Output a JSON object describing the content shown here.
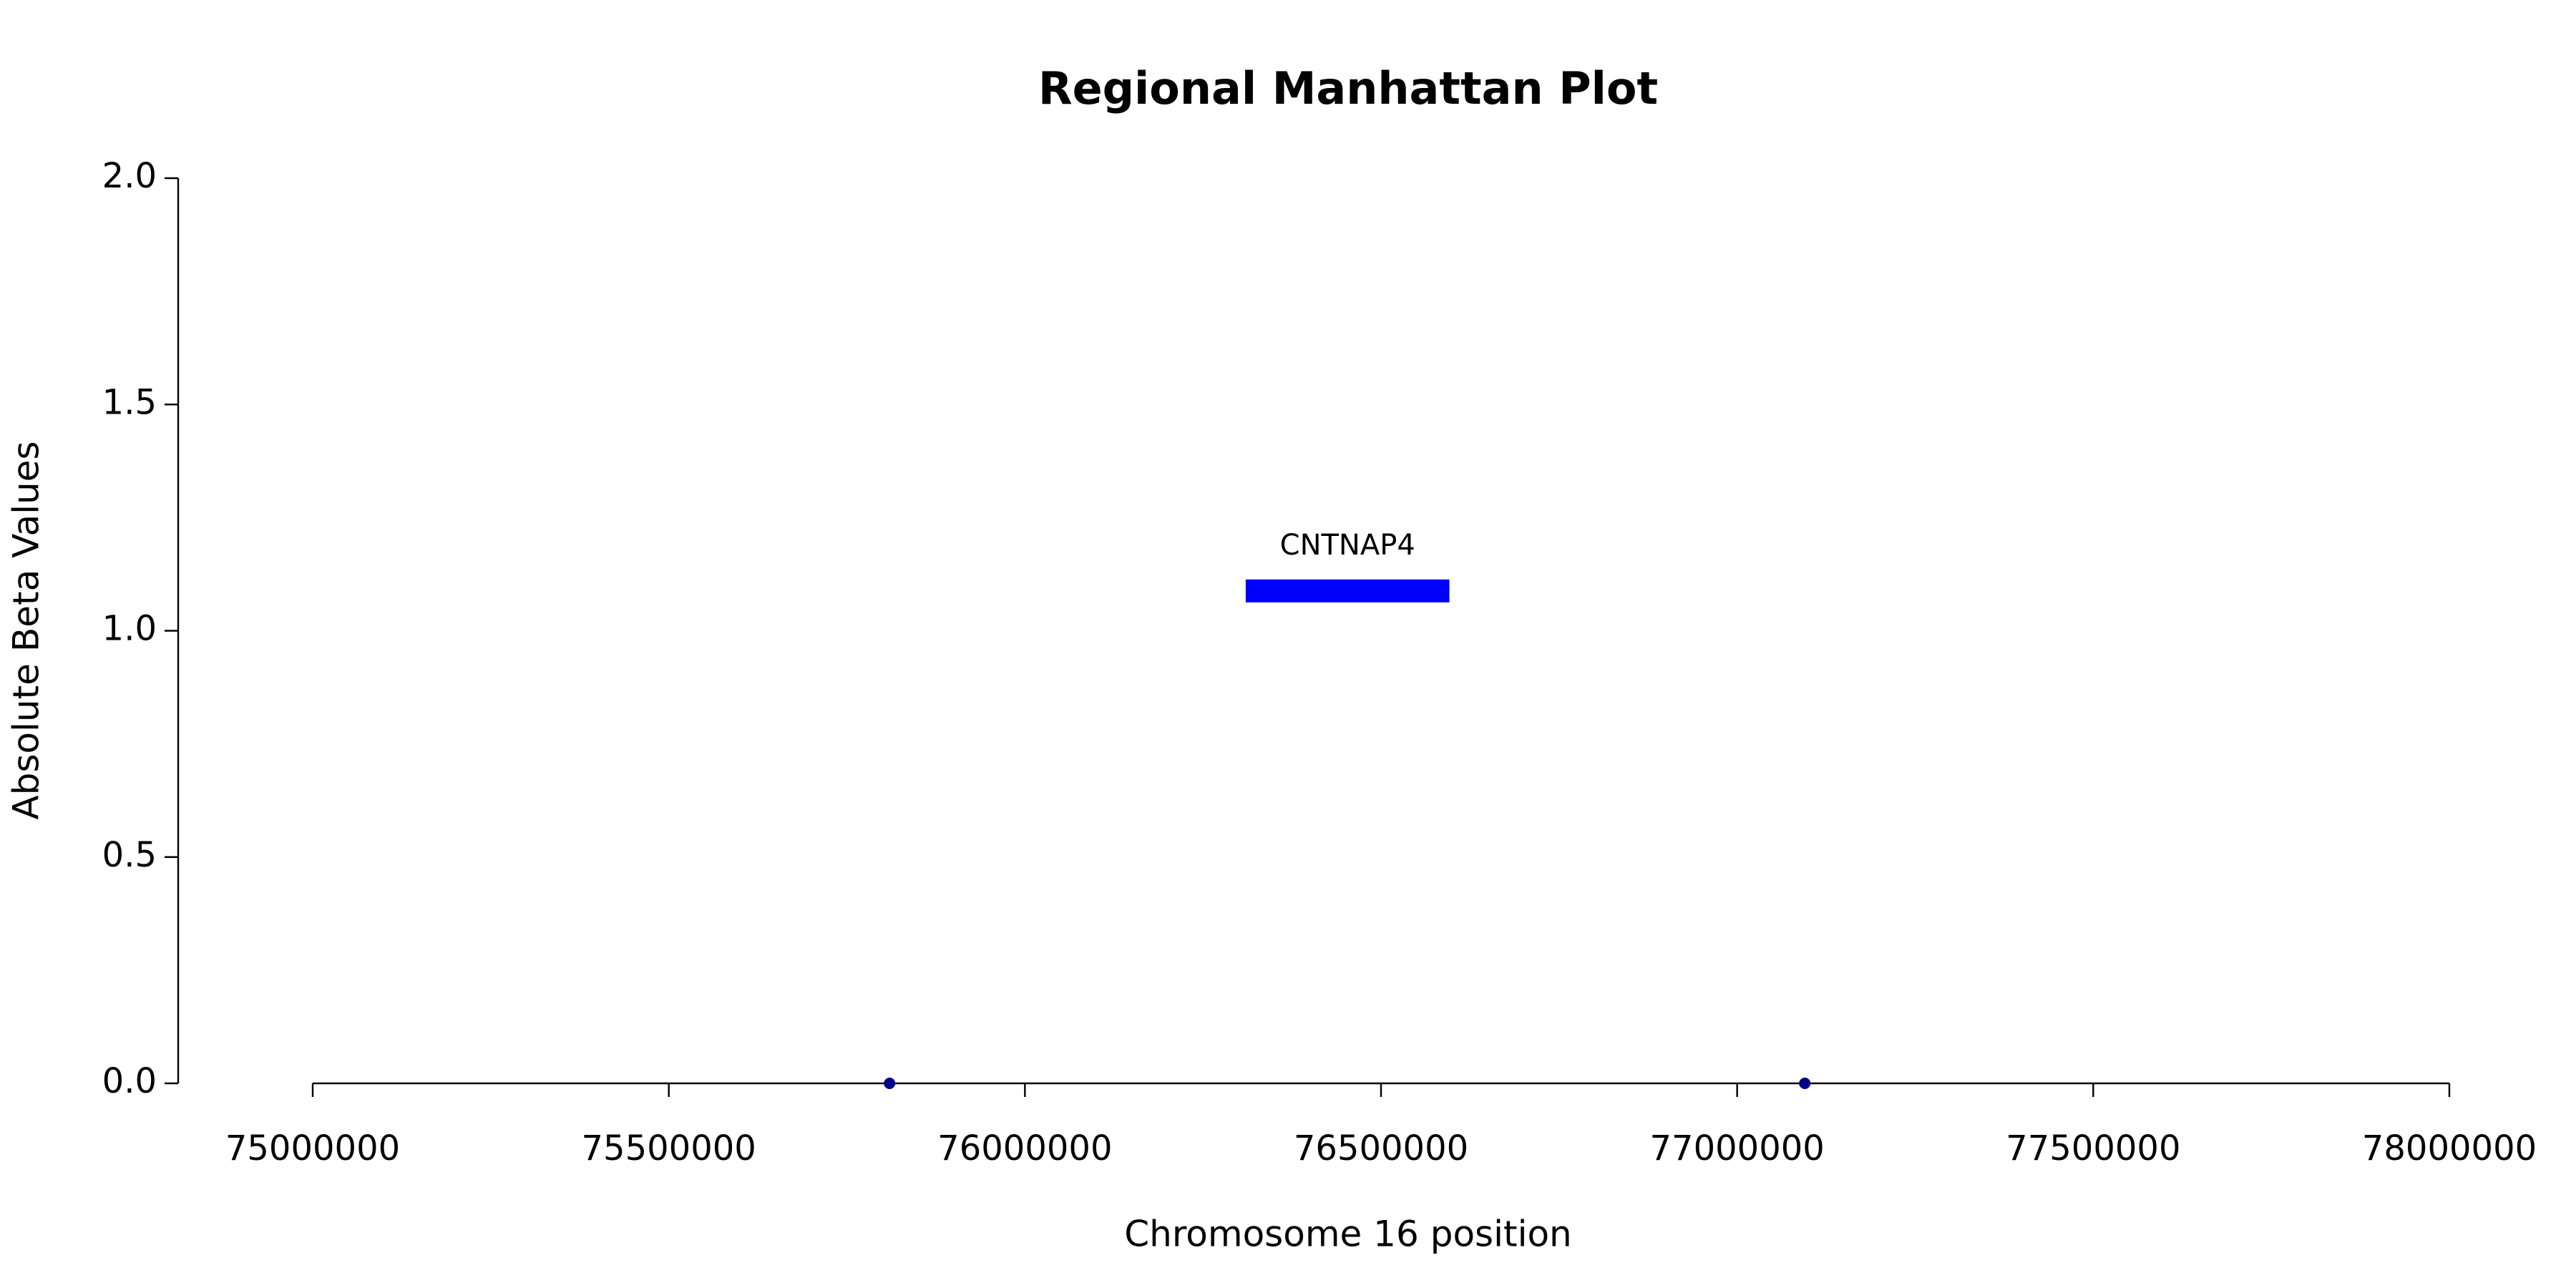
{
  "chart_data": {
    "type": "scatter",
    "title": "Regional Manhattan Plot",
    "x_label": "Chromosome 16 position",
    "y_label": "Absolute Beta Values",
    "x": [
      75810000,
      77095000
    ],
    "y": [
      0,
      0
    ],
    "color": "#00008b",
    "xlim": [
      75000000,
      78000000
    ],
    "xticks": [
      75000000,
      75500000,
      76000000,
      76500000,
      77000000,
      77500000,
      78000000
    ],
    "ylim": [
      0,
      2
    ],
    "yticks": [
      {
        "value": 0,
        "label": "0.0"
      },
      0.5,
      {
        "value": 1,
        "label": "1.0"
      },
      1.5,
      {
        "value": 2,
        "label": "2.0"
      }
    ],
    "gene": {
      "name": "CNTNAP4",
      "start": 76310000,
      "end": 76596000,
      "y": 1.088,
      "color": "#0000ff"
    }
  }
}
